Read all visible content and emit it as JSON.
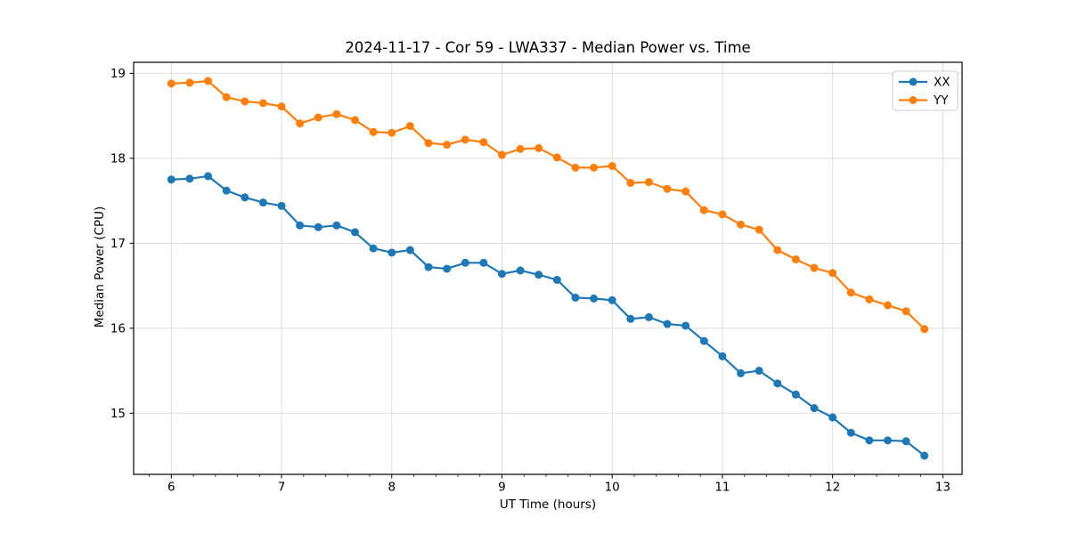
{
  "chart_data": {
    "type": "line",
    "title": "2024-11-17 - Cor 59 - LWA337 - Median Power vs. Time",
    "xlabel": "UT Time (hours)",
    "ylabel": "Median Power (CPU)",
    "x": [
      6.0,
      6.1667,
      6.3333,
      6.5,
      6.6667,
      6.8333,
      7.0,
      7.1667,
      7.3333,
      7.5,
      7.6667,
      7.8333,
      8.0,
      8.1667,
      8.3333,
      8.5,
      8.6667,
      8.8333,
      9.0,
      9.1667,
      9.3333,
      9.5,
      9.6667,
      9.8333,
      10.0,
      10.1667,
      10.3333,
      10.5,
      10.6667,
      10.8333,
      11.0,
      11.1667,
      11.3333,
      11.5,
      11.6667,
      11.8333,
      12.0,
      12.1667,
      12.3333,
      12.5,
      12.6667,
      12.8333
    ],
    "series": [
      {
        "name": "XX",
        "color": "#1f77b4",
        "values": [
          17.75,
          17.76,
          17.79,
          17.62,
          17.54,
          17.48,
          17.44,
          17.21,
          17.19,
          17.21,
          17.13,
          16.94,
          16.89,
          16.92,
          16.72,
          16.7,
          16.77,
          16.77,
          16.64,
          16.68,
          16.63,
          16.57,
          16.36,
          16.35,
          16.33,
          16.11,
          16.13,
          16.05,
          16.03,
          15.85,
          15.67,
          15.47,
          15.5,
          15.35,
          15.22,
          15.06,
          14.95,
          14.77,
          14.68,
          14.68,
          14.67,
          14.5
        ]
      },
      {
        "name": "YY",
        "color": "#ff7f0e",
        "values": [
          18.88,
          18.89,
          18.91,
          18.72,
          18.67,
          18.65,
          18.61,
          18.41,
          18.48,
          18.52,
          18.45,
          18.31,
          18.3,
          18.38,
          18.18,
          18.16,
          18.22,
          18.19,
          18.04,
          18.11,
          18.12,
          18.01,
          17.89,
          17.89,
          17.91,
          17.71,
          17.72,
          17.64,
          17.61,
          17.39,
          17.34,
          17.22,
          17.16,
          16.92,
          16.81,
          16.71,
          16.65,
          16.42,
          16.34,
          16.27,
          16.2,
          15.99
        ]
      }
    ],
    "xlim": [
      5.658,
      13.175
    ],
    "ylim": [
      14.28,
      19.13
    ],
    "xticks": [
      6,
      7,
      8,
      9,
      10,
      11,
      12,
      13
    ],
    "yticks": [
      15,
      16,
      17,
      18,
      19
    ],
    "minor_xtick_step": 0.2,
    "grid": true,
    "grid_color": "#dedede",
    "axis_color": "#000000",
    "background": "#ffffff",
    "marker": "circle",
    "legend": {
      "position": "upper right",
      "entries": [
        "XX",
        "YY"
      ]
    }
  }
}
